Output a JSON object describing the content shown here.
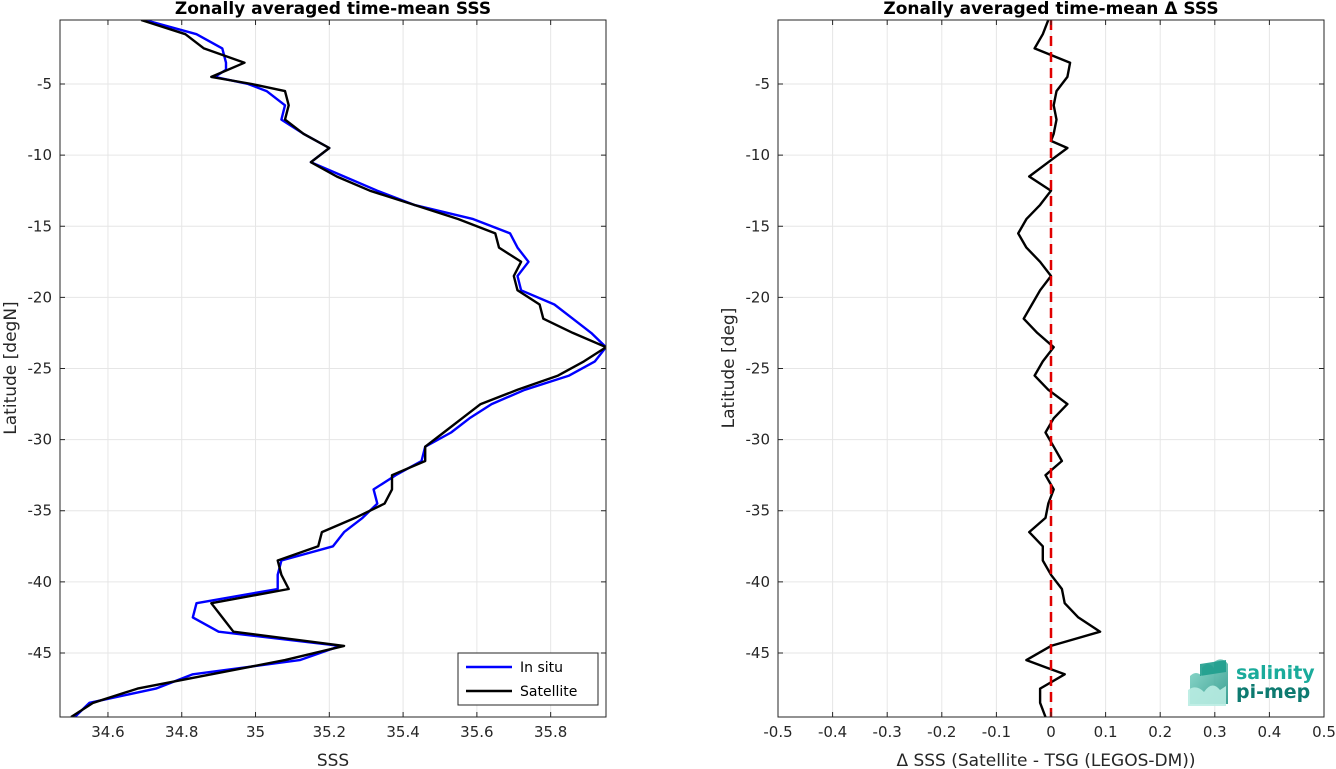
{
  "chart_data": [
    {
      "type": "line",
      "title": "Zonally averaged time-mean SSS",
      "xlabel": "SSS",
      "ylabel": "Latitude [degN]",
      "xlim": [
        34.47,
        35.95
      ],
      "ylim": [
        -49.5,
        -0.5
      ],
      "xticks": [
        34.6,
        34.8,
        35,
        35.2,
        35.4,
        35.6,
        35.8
      ],
      "xtick_labels": [
        "34.6",
        "34.8",
        "35",
        "35.2",
        "35.4",
        "35.6",
        "35.8"
      ],
      "yticks": [
        -5,
        -10,
        -15,
        -20,
        -25,
        -30,
        -35,
        -40,
        -45
      ],
      "ytick_labels": [
        "-5",
        "-10",
        "-15",
        "-20",
        "-25",
        "-30",
        "-35",
        "-40",
        "-45"
      ],
      "grid": true,
      "legend": "bottom-right",
      "series": [
        {
          "name": "In situ",
          "color": "#0000ff",
          "points": [
            [
              34.7,
              -0.5
            ],
            [
              34.84,
              -1.5
            ],
            [
              34.91,
              -2.5
            ],
            [
              34.92,
              -3.5
            ],
            [
              34.92,
              -4.0
            ],
            [
              34.89,
              -4.5
            ],
            [
              34.98,
              -5.0
            ],
            [
              35.03,
              -5.5
            ],
            [
              35.08,
              -6.5
            ],
            [
              35.07,
              -7.5
            ],
            [
              35.13,
              -8.5
            ],
            [
              35.2,
              -9.5
            ],
            [
              35.15,
              -10.5
            ],
            [
              35.24,
              -11.5
            ],
            [
              35.33,
              -12.5
            ],
            [
              35.43,
              -13.5
            ],
            [
              35.59,
              -14.5
            ],
            [
              35.69,
              -15.5
            ],
            [
              35.71,
              -16.5
            ],
            [
              35.74,
              -17.5
            ],
            [
              35.71,
              -18.5
            ],
            [
              35.72,
              -19.5
            ],
            [
              35.81,
              -20.5
            ],
            [
              35.86,
              -21.5
            ],
            [
              35.91,
              -22.5
            ],
            [
              35.95,
              -23.5
            ],
            [
              35.92,
              -24.5
            ],
            [
              35.85,
              -25.5
            ],
            [
              35.73,
              -26.5
            ],
            [
              35.64,
              -27.5
            ],
            [
              35.58,
              -28.5
            ],
            [
              35.53,
              -29.5
            ],
            [
              35.46,
              -30.5
            ],
            [
              35.45,
              -31.5
            ],
            [
              35.38,
              -32.5
            ],
            [
              35.32,
              -33.5
            ],
            [
              35.33,
              -34.5
            ],
            [
              35.29,
              -35.5
            ],
            [
              35.24,
              -36.5
            ],
            [
              35.21,
              -37.5
            ],
            [
              35.07,
              -38.5
            ],
            [
              35.06,
              -39.5
            ],
            [
              35.06,
              -40.5
            ],
            [
              34.84,
              -41.5
            ],
            [
              34.83,
              -42.5
            ],
            [
              34.9,
              -43.5
            ],
            [
              35.23,
              -44.5
            ],
            [
              35.12,
              -45.5
            ],
            [
              34.83,
              -46.5
            ],
            [
              34.73,
              -47.5
            ],
            [
              34.55,
              -48.5
            ],
            [
              34.51,
              -49.5
            ]
          ]
        },
        {
          "name": "Satellite",
          "color": "#000000",
          "points": [
            [
              34.69,
              -0.5
            ],
            [
              34.81,
              -1.5
            ],
            [
              34.86,
              -2.5
            ],
            [
              34.97,
              -3.5
            ],
            [
              34.88,
              -4.5
            ],
            [
              34.99,
              -5.0
            ],
            [
              35.08,
              -5.5
            ],
            [
              35.09,
              -6.5
            ],
            [
              35.08,
              -7.5
            ],
            [
              35.13,
              -8.5
            ],
            [
              35.2,
              -9.5
            ],
            [
              35.15,
              -10.5
            ],
            [
              35.22,
              -11.5
            ],
            [
              35.31,
              -12.5
            ],
            [
              35.43,
              -13.5
            ],
            [
              35.55,
              -14.5
            ],
            [
              35.65,
              -15.5
            ],
            [
              35.66,
              -16.5
            ],
            [
              35.72,
              -17.5
            ],
            [
              35.7,
              -18.5
            ],
            [
              35.71,
              -19.5
            ],
            [
              35.77,
              -20.5
            ],
            [
              35.78,
              -21.5
            ],
            [
              35.86,
              -22.5
            ],
            [
              35.95,
              -23.5
            ],
            [
              35.89,
              -24.5
            ],
            [
              35.82,
              -25.5
            ],
            [
              35.71,
              -26.5
            ],
            [
              35.61,
              -27.5
            ],
            [
              35.56,
              -28.5
            ],
            [
              35.51,
              -29.5
            ],
            [
              35.46,
              -30.5
            ],
            [
              35.46,
              -31.5
            ],
            [
              35.37,
              -32.5
            ],
            [
              35.37,
              -33.5
            ],
            [
              35.35,
              -34.5
            ],
            [
              35.27,
              -35.5
            ],
            [
              35.18,
              -36.5
            ],
            [
              35.17,
              -37.5
            ],
            [
              35.06,
              -38.5
            ],
            [
              35.07,
              -39.5
            ],
            [
              35.09,
              -40.5
            ],
            [
              34.88,
              -41.5
            ],
            [
              34.91,
              -42.5
            ],
            [
              34.94,
              -43.5
            ],
            [
              35.24,
              -44.5
            ],
            [
              35.08,
              -45.5
            ],
            [
              34.88,
              -46.5
            ],
            [
              34.68,
              -47.5
            ],
            [
              34.56,
              -48.5
            ],
            [
              34.5,
              -49.5
            ]
          ]
        }
      ]
    },
    {
      "type": "line",
      "title": "Zonally averaged time-mean Δ SSS",
      "xlabel": "Δ SSS (Satellite - TSG (LEGOS-DM))",
      "ylabel": "Latitude [deg]",
      "xlim": [
        -0.5,
        0.5
      ],
      "ylim": [
        -49.5,
        -0.5
      ],
      "xticks": [
        -0.5,
        -0.4,
        -0.3,
        -0.2,
        -0.1,
        0,
        0.1,
        0.2,
        0.3,
        0.4,
        0.5
      ],
      "xtick_labels": [
        "-0.5",
        "-0.4",
        "-0.3",
        "-0.2",
        "-0.1",
        "0",
        "0.1",
        "0.2",
        "0.3",
        "0.4",
        "0.5"
      ],
      "yticks": [
        -5,
        -10,
        -15,
        -20,
        -25,
        -30,
        -35,
        -40,
        -45
      ],
      "ytick_labels": [
        "-5",
        "-10",
        "-15",
        "-20",
        "-25",
        "-30",
        "-35",
        "-40",
        "-45"
      ],
      "grid": true,
      "reference_line": {
        "x": 0,
        "color": "#e00000",
        "style": "dashed"
      },
      "series": [
        {
          "color": "#000000",
          "points": [
            [
              -0.005,
              -0.5
            ],
            [
              -0.015,
              -1.5
            ],
            [
              -0.03,
              -2.5
            ],
            [
              0.035,
              -3.5
            ],
            [
              0.03,
              -4.5
            ],
            [
              0.01,
              -5.5
            ],
            [
              0.005,
              -6.5
            ],
            [
              0.01,
              -7.5
            ],
            [
              0.005,
              -8.5
            ],
            [
              0.0,
              -9.0
            ],
            [
              0.03,
              -9.5
            ],
            [
              -0.005,
              -10.5
            ],
            [
              -0.04,
              -11.5
            ],
            [
              0.0,
              -12.5
            ],
            [
              -0.02,
              -13.5
            ],
            [
              -0.045,
              -14.5
            ],
            [
              -0.06,
              -15.5
            ],
            [
              -0.045,
              -16.5
            ],
            [
              -0.02,
              -17.5
            ],
            [
              0.0,
              -18.5
            ],
            [
              -0.02,
              -19.5
            ],
            [
              -0.035,
              -20.5
            ],
            [
              -0.05,
              -21.5
            ],
            [
              -0.025,
              -22.5
            ],
            [
              0.005,
              -23.5
            ],
            [
              -0.015,
              -24.5
            ],
            [
              -0.03,
              -25.5
            ],
            [
              -0.005,
              -26.5
            ],
            [
              0.03,
              -27.5
            ],
            [
              0.005,
              -28.5
            ],
            [
              -0.01,
              -29.5
            ],
            [
              0.005,
              -30.5
            ],
            [
              0.02,
              -31.5
            ],
            [
              -0.01,
              -32.5
            ],
            [
              0.005,
              -33.5
            ],
            [
              -0.005,
              -34.5
            ],
            [
              -0.01,
              -35.5
            ],
            [
              -0.04,
              -36.5
            ],
            [
              -0.015,
              -37.5
            ],
            [
              -0.015,
              -38.5
            ],
            [
              0.0,
              -39.5
            ],
            [
              0.02,
              -40.5
            ],
            [
              0.025,
              -41.5
            ],
            [
              0.05,
              -42.5
            ],
            [
              0.09,
              -43.5
            ],
            [
              0.0,
              -44.5
            ],
            [
              -0.045,
              -45.5
            ],
            [
              -0.01,
              -46.0
            ],
            [
              0.025,
              -46.5
            ],
            [
              -0.02,
              -47.5
            ],
            [
              -0.02,
              -48.5
            ],
            [
              -0.01,
              -49.5
            ]
          ]
        }
      ]
    }
  ],
  "logo": {
    "line1": "salinity",
    "line2": "pi-mep",
    "color1": "#1aab9b",
    "color2": "#0d7a70"
  }
}
